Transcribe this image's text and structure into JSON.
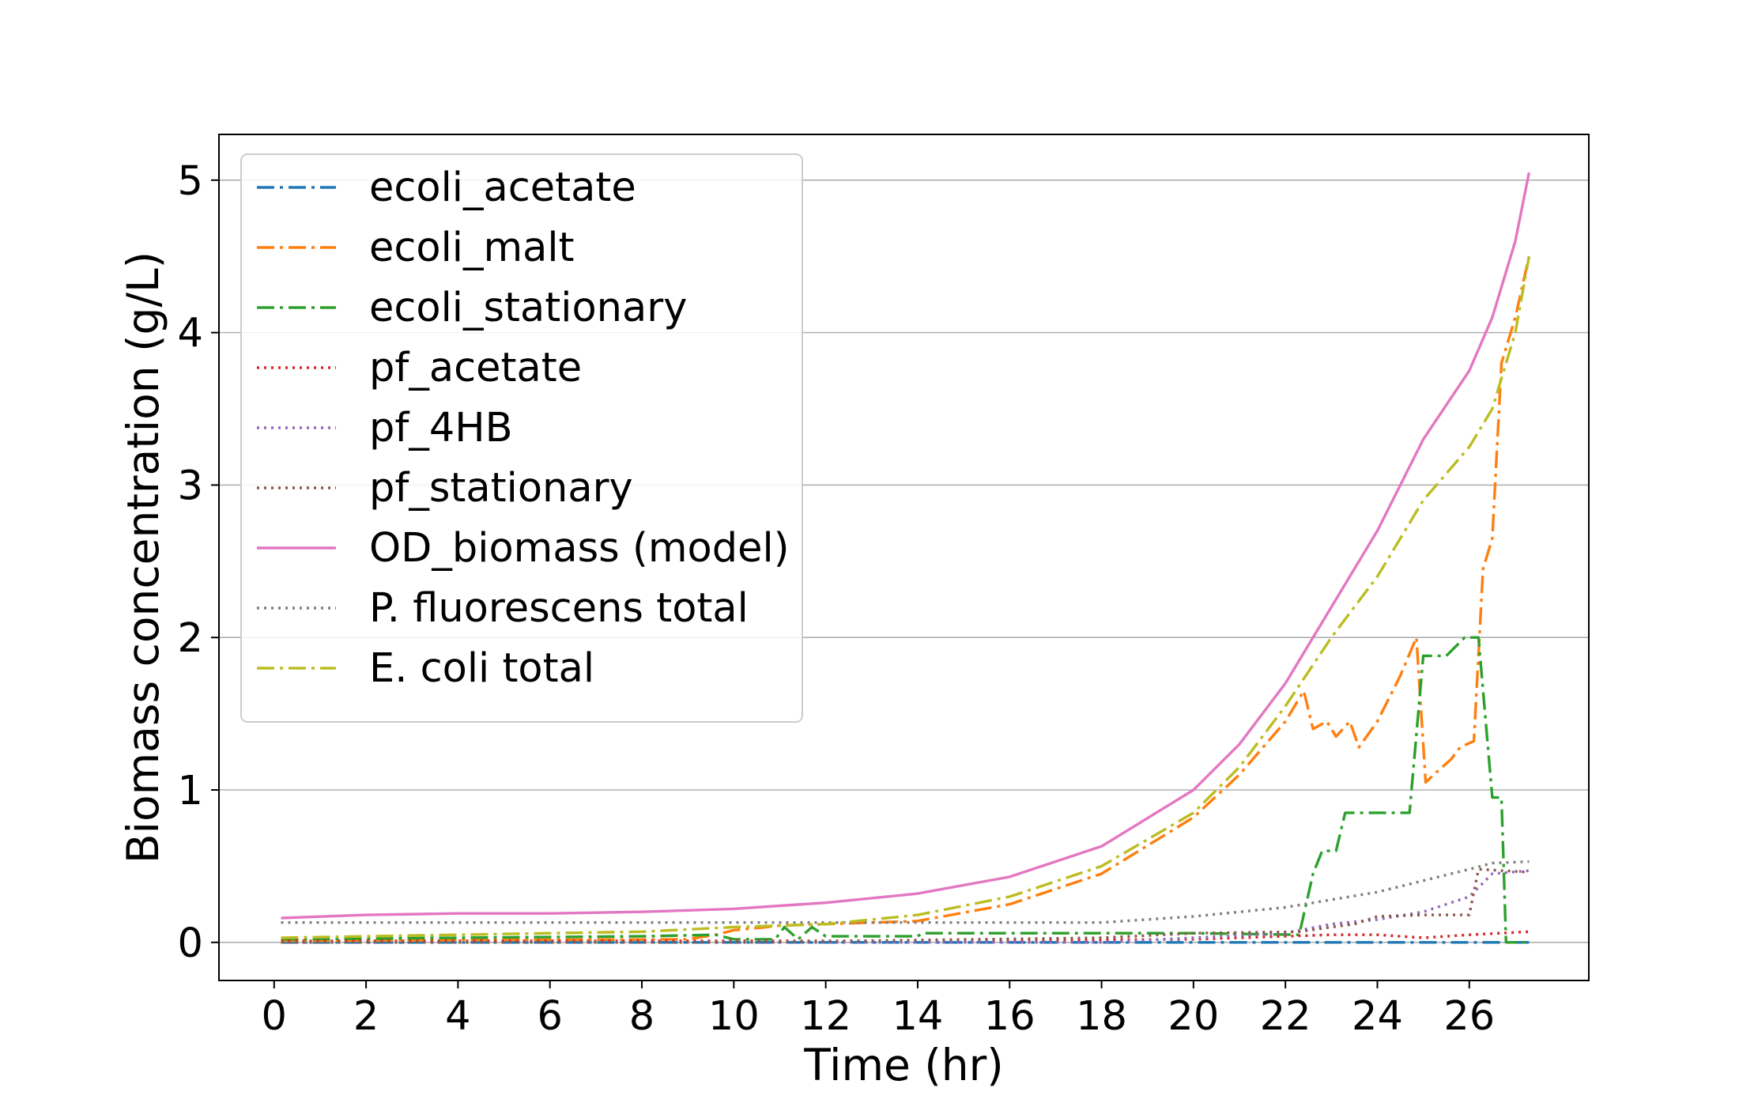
{
  "chart_data": {
    "type": "line",
    "title": "",
    "xlabel": "Time (hr)",
    "ylabel": "Biomass concentration (g/L)",
    "xlim": [
      -1.2,
      28.6
    ],
    "ylim": [
      -0.25,
      5.3
    ],
    "xticks": [
      0,
      2,
      4,
      6,
      8,
      10,
      12,
      14,
      16,
      18,
      20,
      22,
      24,
      26
    ],
    "yticks": [
      0,
      1,
      2,
      3,
      4,
      5
    ],
    "grid": "horizontal",
    "legend_position": "upper-left",
    "series": [
      {
        "name": "ecoli_acetate",
        "color": "#1f77b4",
        "style": "dashdot",
        "points": [
          [
            0.15,
            0.0
          ],
          [
            10,
            0.0
          ],
          [
            14,
            0.0
          ],
          [
            20,
            0.0
          ],
          [
            24,
            0.0
          ],
          [
            26,
            0.0
          ],
          [
            27.3,
            0.0
          ]
        ]
      },
      {
        "name": "ecoli_malt",
        "color": "#ff7f0e",
        "style": "dashdot",
        "points": [
          [
            0.15,
            0.01
          ],
          [
            9,
            0.02
          ],
          [
            9.6,
            0.05
          ],
          [
            10,
            0.08
          ],
          [
            10.7,
            0.1
          ],
          [
            11,
            0.11
          ],
          [
            12,
            0.12
          ],
          [
            14,
            0.14
          ],
          [
            16,
            0.25
          ],
          [
            18,
            0.45
          ],
          [
            20,
            0.82
          ],
          [
            21,
            1.1
          ],
          [
            22,
            1.45
          ],
          [
            22.4,
            1.65
          ],
          [
            22.6,
            1.4
          ],
          [
            22.9,
            1.45
          ],
          [
            23.1,
            1.35
          ],
          [
            23.4,
            1.45
          ],
          [
            23.6,
            1.28
          ],
          [
            24,
            1.45
          ],
          [
            24.5,
            1.75
          ],
          [
            24.85,
            2.0
          ],
          [
            25.05,
            1.05
          ],
          [
            25.3,
            1.12
          ],
          [
            25.6,
            1.2
          ],
          [
            25.8,
            1.28
          ],
          [
            26.1,
            1.32
          ],
          [
            26.3,
            2.45
          ],
          [
            26.5,
            2.65
          ],
          [
            26.7,
            3.8
          ],
          [
            27.0,
            4.1
          ],
          [
            27.3,
            4.5
          ]
        ]
      },
      {
        "name": "ecoli_stationary",
        "color": "#2ca02c",
        "style": "dashdot",
        "points": [
          [
            0.15,
            0.02
          ],
          [
            4,
            0.03
          ],
          [
            8,
            0.04
          ],
          [
            9.6,
            0.05
          ],
          [
            10,
            0.02
          ],
          [
            10.9,
            0.02
          ],
          [
            11.1,
            0.1
          ],
          [
            11.4,
            0.02
          ],
          [
            11.7,
            0.1
          ],
          [
            12,
            0.04
          ],
          [
            14,
            0.04
          ],
          [
            14.1,
            0.06
          ],
          [
            20,
            0.06
          ],
          [
            22.3,
            0.05
          ],
          [
            22.6,
            0.45
          ],
          [
            22.8,
            0.6
          ],
          [
            23.1,
            0.6
          ],
          [
            23.3,
            0.85
          ],
          [
            24.7,
            0.85
          ],
          [
            25.0,
            1.88
          ],
          [
            25.5,
            1.88
          ],
          [
            25.9,
            2.0
          ],
          [
            26.2,
            2.0
          ],
          [
            26.5,
            0.95
          ],
          [
            26.7,
            0.95
          ],
          [
            26.8,
            0.0
          ],
          [
            27.3,
            0.0
          ]
        ]
      },
      {
        "name": "pf_acetate",
        "color": "#d62728",
        "style": "dotted",
        "points": [
          [
            0.15,
            0.01
          ],
          [
            10,
            0.01
          ],
          [
            14,
            0.01
          ],
          [
            20,
            0.02
          ],
          [
            22,
            0.04
          ],
          [
            23,
            0.05
          ],
          [
            24,
            0.05
          ],
          [
            25,
            0.03
          ],
          [
            26,
            0.05
          ],
          [
            27.3,
            0.07
          ]
        ]
      },
      {
        "name": "pf_4HB",
        "color": "#9467bd",
        "style": "dotted",
        "points": [
          [
            0.15,
            0.0
          ],
          [
            10,
            0.0
          ],
          [
            18,
            0.0
          ],
          [
            20,
            0.03
          ],
          [
            22,
            0.06
          ],
          [
            23,
            0.12
          ],
          [
            24,
            0.15
          ],
          [
            25,
            0.2
          ],
          [
            26,
            0.3
          ],
          [
            26.5,
            0.45
          ],
          [
            27.3,
            0.47
          ]
        ]
      },
      {
        "name": "pf_stationary",
        "color": "#8c564b",
        "style": "dotted",
        "points": [
          [
            0.15,
            0.0
          ],
          [
            10,
            0.0
          ],
          [
            18,
            0.03
          ],
          [
            20,
            0.06
          ],
          [
            22.3,
            0.07
          ],
          [
            23,
            0.1
          ],
          [
            23.5,
            0.12
          ],
          [
            24,
            0.17
          ],
          [
            25,
            0.18
          ],
          [
            26,
            0.18
          ],
          [
            26.2,
            0.48
          ],
          [
            27.3,
            0.46
          ]
        ]
      },
      {
        "name": "OD_biomass (model)",
        "color": "#e377c2",
        "style": "solid",
        "points": [
          [
            0.15,
            0.16
          ],
          [
            2,
            0.18
          ],
          [
            4,
            0.19
          ],
          [
            6,
            0.19
          ],
          [
            8,
            0.2
          ],
          [
            10,
            0.22
          ],
          [
            11,
            0.24
          ],
          [
            12,
            0.26
          ],
          [
            14,
            0.32
          ],
          [
            16,
            0.43
          ],
          [
            18,
            0.63
          ],
          [
            20,
            1.0
          ],
          [
            21,
            1.3
          ],
          [
            22,
            1.7
          ],
          [
            23,
            2.2
          ],
          [
            24,
            2.7
          ],
          [
            25,
            3.3
          ],
          [
            26,
            3.75
          ],
          [
            26.5,
            4.1
          ],
          [
            27,
            4.6
          ],
          [
            27.3,
            5.05
          ]
        ]
      },
      {
        "name": "P. fluorescens total",
        "color": "#7f7f7f",
        "style": "dotted",
        "points": [
          [
            0.15,
            0.13
          ],
          [
            2,
            0.13
          ],
          [
            6,
            0.13
          ],
          [
            10,
            0.13
          ],
          [
            14,
            0.13
          ],
          [
            18,
            0.13
          ],
          [
            20,
            0.17
          ],
          [
            22,
            0.23
          ],
          [
            24,
            0.33
          ],
          [
            26,
            0.48
          ],
          [
            26.5,
            0.52
          ],
          [
            27.3,
            0.53
          ]
        ]
      },
      {
        "name": "E. coli total",
        "color": "#bcbd22",
        "style": "dashdot",
        "points": [
          [
            0.15,
            0.03
          ],
          [
            2,
            0.04
          ],
          [
            4,
            0.05
          ],
          [
            6,
            0.06
          ],
          [
            8,
            0.07
          ],
          [
            10,
            0.1
          ],
          [
            12,
            0.12
          ],
          [
            14,
            0.18
          ],
          [
            16,
            0.3
          ],
          [
            18,
            0.5
          ],
          [
            20,
            0.85
          ],
          [
            21,
            1.15
          ],
          [
            22,
            1.55
          ],
          [
            23,
            2.0
          ],
          [
            24,
            2.4
          ],
          [
            25,
            2.9
          ],
          [
            26,
            3.25
          ],
          [
            26.5,
            3.5
          ],
          [
            27,
            4.0
          ],
          [
            27.3,
            4.5
          ]
        ]
      }
    ]
  }
}
